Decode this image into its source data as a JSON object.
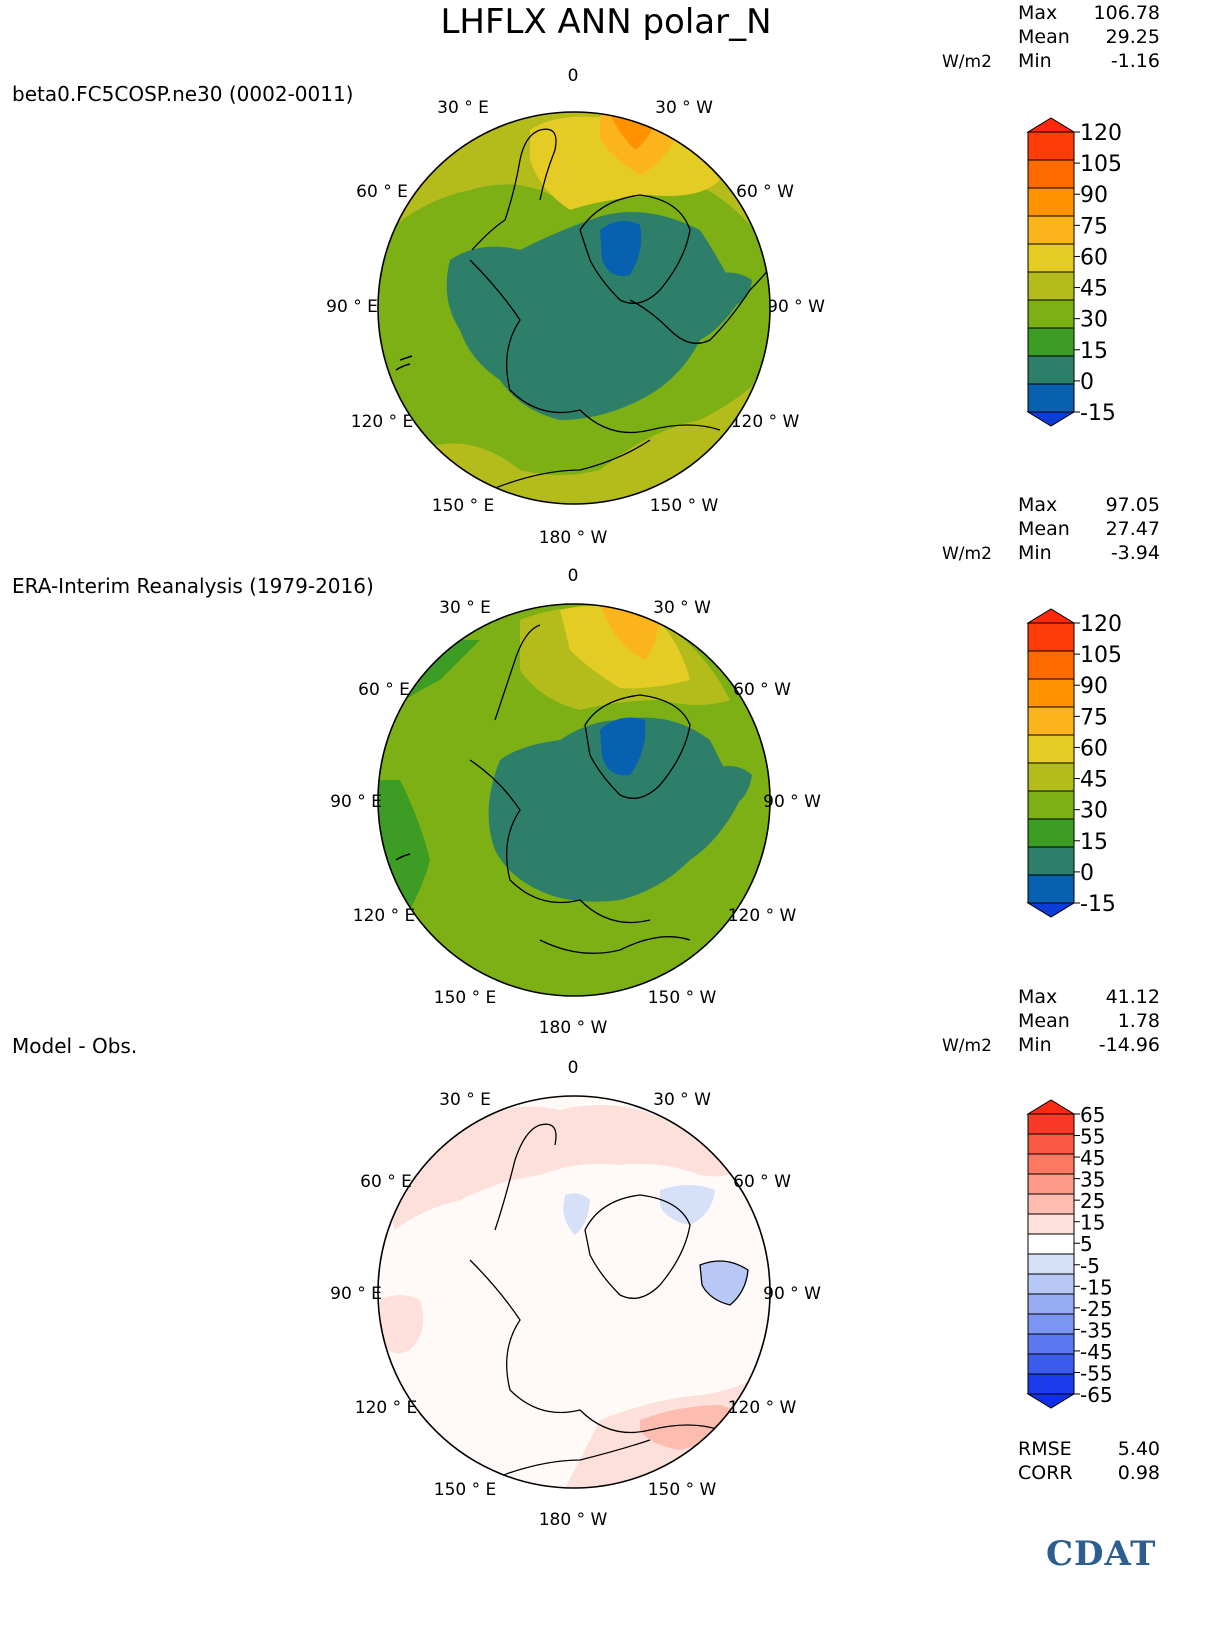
{
  "figure": {
    "title": "LHFLX ANN polar_N",
    "logo_text": "CDAT"
  },
  "panels": [
    {
      "subtitle": "beta0.FC5COSP.ne30 (0002-0011)",
      "units": "W/m2",
      "stats": [
        {
          "label": "Max",
          "value": "106.78"
        },
        {
          "label": "Mean",
          "value": "29.25"
        },
        {
          "label": "Min",
          "value": "-1.16"
        }
      ],
      "lon_labels": {
        "top": "0",
        "e30": "30 ° E",
        "w30": "30 ° W",
        "e60": "60 ° E",
        "w60": "60 ° W",
        "e90": "90 ° E",
        "w90": "90 ° W",
        "e120": "120 ° E",
        "w120": "120 ° W",
        "e150": "150 ° E",
        "w150": "150 ° W",
        "bottom": "180 ° W"
      }
    },
    {
      "subtitle": "ERA-Interim Reanalysis (1979-2016)",
      "units": "W/m2",
      "stats": [
        {
          "label": "Max",
          "value": "97.05"
        },
        {
          "label": "Mean",
          "value": "27.47"
        },
        {
          "label": "Min",
          "value": "-3.94"
        }
      ],
      "lon_labels": {
        "top": "0",
        "e30": "30 ° E",
        "w30": "30 ° W",
        "e60": "60 ° E",
        "w60": "60 ° W",
        "e90": "90 ° E",
        "w90": "90 ° W",
        "e120": "120 ° E",
        "w120": "120 ° W",
        "e150": "150 ° E",
        "w150": "150 ° W",
        "bottom": "180 ° W"
      }
    },
    {
      "subtitle": "Model - Obs.",
      "units": "W/m2",
      "stats": [
        {
          "label": "Max",
          "value": "41.12"
        },
        {
          "label": "Mean",
          "value": "1.78"
        },
        {
          "label": "Min",
          "value": "-14.96"
        }
      ],
      "extra_stats": [
        {
          "label": "RMSE",
          "value": "5.40"
        },
        {
          "label": "CORR",
          "value": "0.98"
        }
      ],
      "lon_labels": {
        "top": "0",
        "e30": "30 ° E",
        "w30": "30 ° W",
        "e60": "60 ° E",
        "w60": "60 ° W",
        "e90": "90 ° E",
        "w90": "90 ° W",
        "e120": "120 ° E",
        "w120": "120 ° W",
        "e150": "150 ° E",
        "w150": "150 ° W",
        "bottom": "180 ° W"
      }
    }
  ],
  "colorbars": {
    "main": {
      "ticks": [
        "120",
        "105",
        "90",
        "75",
        "60",
        "45",
        "30",
        "15",
        "0",
        "-15"
      ],
      "colors": [
        "#fe3c08",
        "#fe6a00",
        "#fe9200",
        "#fcb41c",
        "#e4cc24",
        "#b4bc1c",
        "#7cb014",
        "#3c9c24",
        "#2e7f6a",
        "#0760b0"
      ],
      "over_color": "#fe2a0a",
      "under_color": "#0d3cd8"
    },
    "diff": {
      "ticks": [
        "65",
        "55",
        "45",
        "35",
        "25",
        "15",
        "5",
        "-5",
        "-15",
        "-25",
        "-35",
        "-45",
        "-55",
        "-65"
      ],
      "colors": [
        "#f83a26",
        "#fa5a44",
        "#fc7862",
        "#fd9a88",
        "#fdbcb0",
        "#fde0da",
        "#ffffff",
        "#d6e0f8",
        "#b8c8f6",
        "#98acf4",
        "#7c94f2",
        "#5c78f0",
        "#3c5cee",
        "#1c3cec"
      ],
      "over_color": "#f82a14",
      "under_color": "#1030e8"
    }
  },
  "chart_data": [
    {
      "type": "heatmap",
      "title": "LHFLX ANN polar_N",
      "subtitle": "beta0.FC5COSP.ne30 (0002-0011)",
      "projection": "north polar stereographic",
      "units": "W/m2",
      "max": 106.78,
      "mean": 29.25,
      "min": -1.16,
      "contour_levels": [
        -15,
        0,
        15,
        30,
        45,
        60,
        75,
        90,
        105,
        120
      ]
    },
    {
      "type": "heatmap",
      "title": "LHFLX ANN polar_N",
      "subtitle": "ERA-Interim Reanalysis (1979-2016)",
      "projection": "north polar stereographic",
      "units": "W/m2",
      "max": 97.05,
      "mean": 27.47,
      "min": -3.94,
      "contour_levels": [
        -15,
        0,
        15,
        30,
        45,
        60,
        75,
        90,
        105,
        120
      ]
    },
    {
      "type": "heatmap",
      "title": "LHFLX ANN polar_N",
      "subtitle": "Model - Obs.",
      "projection": "north polar stereographic",
      "units": "W/m2",
      "max": 41.12,
      "mean": 1.78,
      "min": -14.96,
      "rmse": 5.4,
      "corr": 0.98,
      "contour_levels": [
        -65,
        -55,
        -45,
        -35,
        -25,
        -15,
        -5,
        5,
        15,
        25,
        35,
        45,
        55,
        65
      ]
    }
  ]
}
